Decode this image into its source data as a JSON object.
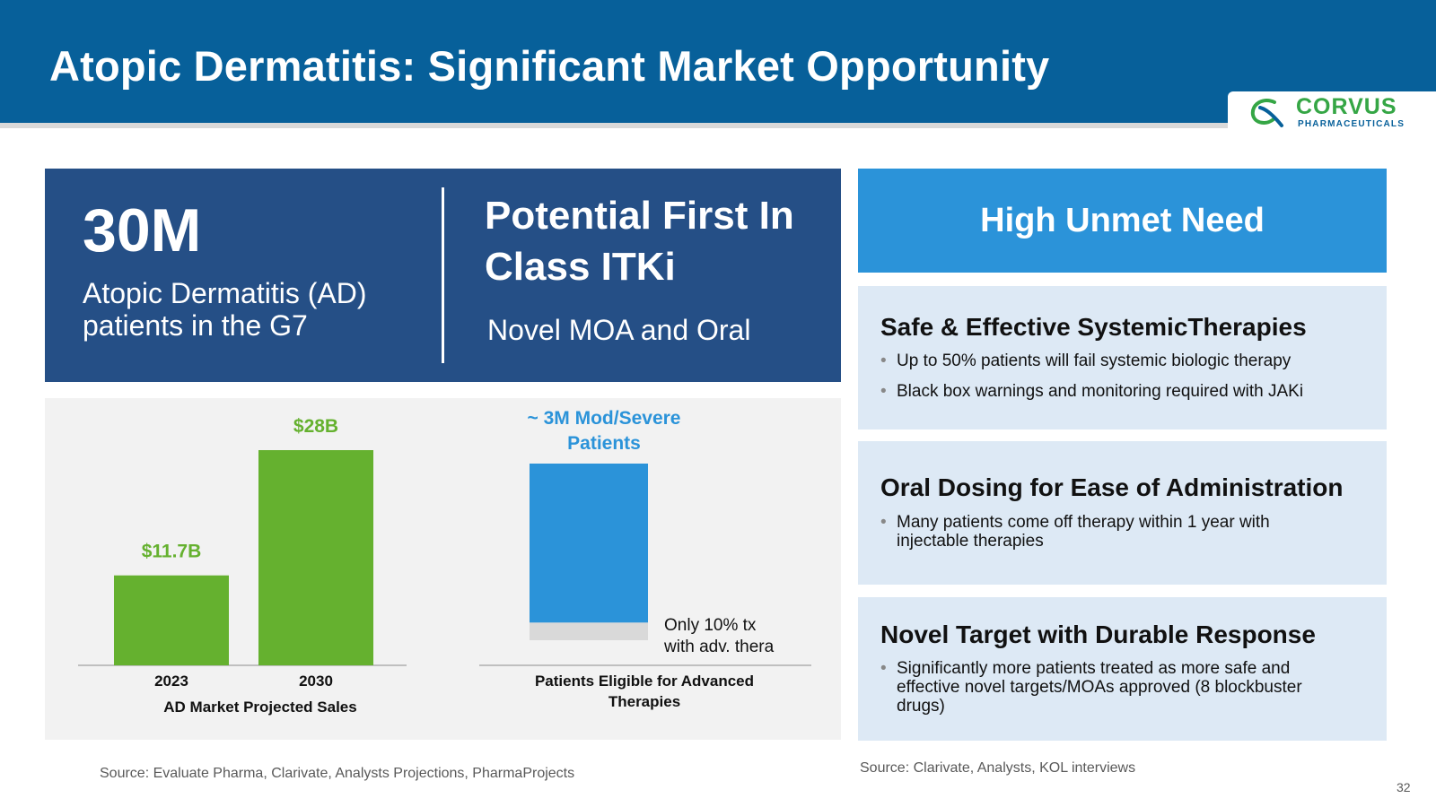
{
  "header": {
    "title": "Atopic Dermatitis: Significant Market Opportunity",
    "logo": {
      "name": "CORVUS",
      "subtitle": "PHARMACEUTICALS"
    }
  },
  "stat_panel": {
    "big_value": "30M",
    "description": "Atopic Dermatitis (AD) patients in the G7",
    "right_title": "Potential First In Class ITKi",
    "right_subtitle": "Novel MOA and Oral"
  },
  "chart_data": [
    {
      "type": "bar",
      "title": "",
      "xlabel": "AD Market Projected Sales",
      "ylabel": "",
      "categories": [
        "2023",
        "2030"
      ],
      "values": [
        11.7,
        28
      ],
      "data_labels": [
        "$11.7B",
        "$28B"
      ],
      "ylim": [
        0,
        28
      ],
      "grid": false,
      "legend": "none",
      "colors": [
        "#65b12f"
      ]
    },
    {
      "type": "bar",
      "title": "",
      "xlabel": "Patients Eligible for Advanced Therapies",
      "ylabel": "",
      "stacked": true,
      "categories": [
        ""
      ],
      "series": [
        {
          "values": [
            10
          ],
          "color": "#d9d9d9"
        },
        {
          "values": [
            90
          ],
          "color": "#2b93d9"
        }
      ],
      "top_label": "~ 3M Mod/Severe Patients",
      "annotation": [
        "Only 10% tx",
        "with adv. thera"
      ],
      "ylim": [
        0,
        100
      ],
      "grid": false,
      "legend": "none"
    }
  ],
  "sources": {
    "left": "Source: Evaluate Pharma, Clarivate, Analysts Projections,  PharmaProjects",
    "right": "Source: Clarivate, Analysts, KOL interviews"
  },
  "unmet_need": {
    "header": "High Unmet Need",
    "cards": [
      {
        "title": "Safe & Effective SystemicTherapies",
        "bullets": [
          "Up to 50% patients will fail systemic biologic therapy",
          "Black box warnings and monitoring required with JAKi"
        ]
      },
      {
        "title": "Oral Dosing for Ease of Administration",
        "bullets": [
          "Many patients come off therapy within 1 year with injectable therapies"
        ]
      },
      {
        "title": "Novel Target with Durable Response",
        "bullets": [
          "Significantly more patients treated as more safe and effective novel targets/MOAs approved (8 blockbuster drugs)"
        ]
      }
    ]
  },
  "page_number": "32",
  "colors": {
    "header_blue": "#07609a",
    "panel_navy": "#254f86",
    "accent_blue": "#2b93d9",
    "green": "#65b12f",
    "card_bg": "#dde9f5"
  }
}
